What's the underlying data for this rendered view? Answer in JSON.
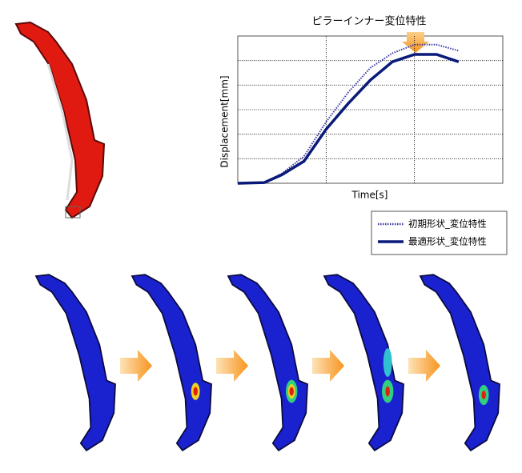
{
  "chart_data": {
    "type": "line",
    "title": "ピラーインナー変位特性",
    "x_label": "Time[s]",
    "y_label": "Displacement[mm]",
    "x": [
      0,
      0.3,
      0.5,
      0.75,
      1.0,
      1.25,
      1.5,
      1.75,
      2.0,
      2.25,
      2.5
    ],
    "xlim": [
      0,
      3
    ],
    "ylim": [
      0,
      6
    ],
    "xticks": [
      1,
      2
    ],
    "yticks": [
      1,
      2,
      3,
      4,
      5
    ],
    "grid": true,
    "tick_labels": false,
    "series": [
      {
        "name": "初期形状_変位特性",
        "color": "#3a3aa8",
        "style": "dotted",
        "values": [
          0,
          0.03,
          0.4,
          1.1,
          2.5,
          3.7,
          4.7,
          5.3,
          5.65,
          5.65,
          5.4
        ]
      },
      {
        "name": "最適形状_変位特性",
        "color": "#0a1a7a",
        "style": "solid",
        "values": [
          0,
          0.03,
          0.35,
          0.9,
          2.2,
          3.25,
          4.2,
          4.95,
          5.25,
          5.25,
          4.95
        ]
      }
    ]
  }
}
